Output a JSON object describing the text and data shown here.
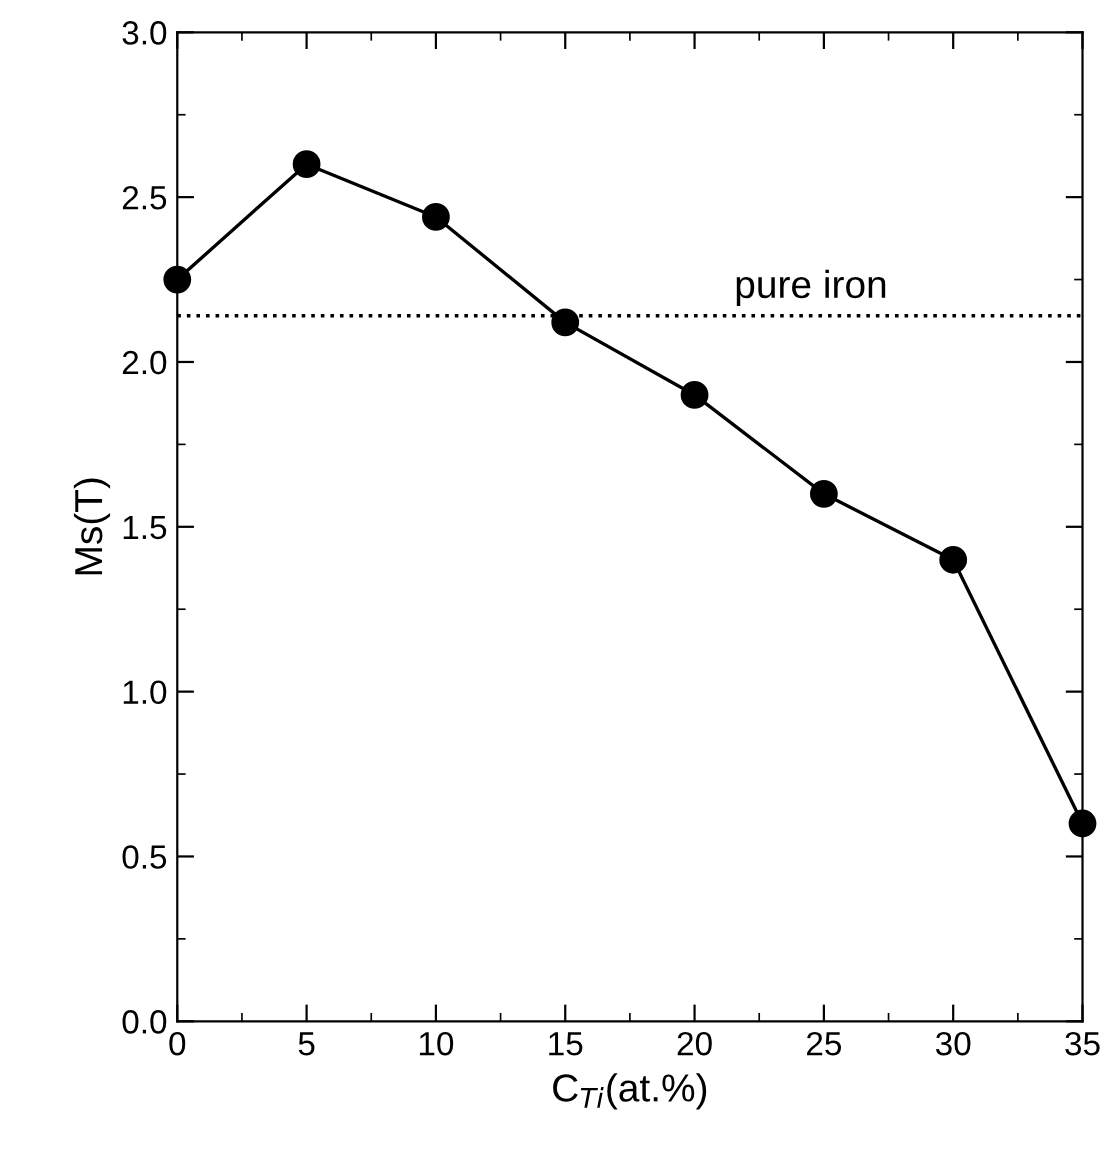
{
  "chart_data": {
    "type": "line",
    "x": [
      0,
      5,
      10,
      15,
      20,
      25,
      30,
      35
    ],
    "series": [
      {
        "color": "#000000",
        "values": [
          2.25,
          2.6,
          2.44,
          2.12,
          1.9,
          1.6,
          1.4,
          0.6
        ]
      }
    ],
    "xlabel": "C$_{Ti}$(at.%)",
    "ylabel": "Ms(T)",
    "xlim": [
      0,
      35
    ],
    "xticks": [
      0,
      5,
      10,
      15,
      20,
      25,
      30,
      35
    ],
    "ylim": [
      0,
      3.0
    ],
    "yticks": [
      {
        "value": 0,
        "label": "0.0"
      },
      {
        "value": 0.5,
        "label": "0.5"
      },
      {
        "value": 1,
        "label": "1.0"
      },
      {
        "value": 1.5,
        "label": "1.5"
      },
      {
        "value": 2,
        "label": "2.0"
      },
      {
        "value": 2.5,
        "label": "2.5"
      },
      {
        "value": 3,
        "label": "3.0"
      }
    ],
    "ref_lines": [
      {
        "axis": "y",
        "value": 2.14,
        "label": "pure iron",
        "line_style": "dotted",
        "color": "#000000"
      }
    ],
    "marker": "circle",
    "line_style": "solid",
    "grid": false,
    "legend": false
  }
}
